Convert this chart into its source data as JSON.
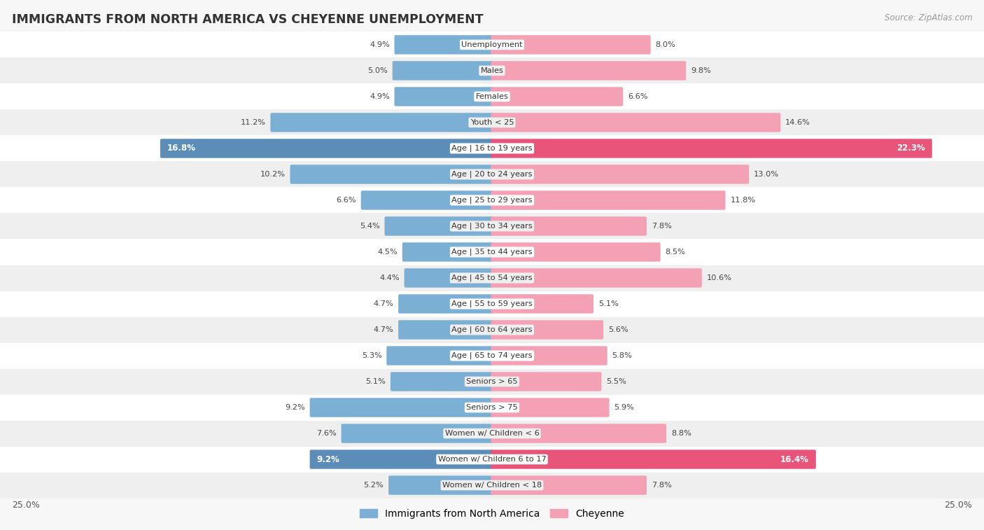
{
  "title": "IMMIGRANTS FROM NORTH AMERICA VS CHEYENNE UNEMPLOYMENT",
  "source": "Source: ZipAtlas.com",
  "categories": [
    "Unemployment",
    "Males",
    "Females",
    "Youth < 25",
    "Age | 16 to 19 years",
    "Age | 20 to 24 years",
    "Age | 25 to 29 years",
    "Age | 30 to 34 years",
    "Age | 35 to 44 years",
    "Age | 45 to 54 years",
    "Age | 55 to 59 years",
    "Age | 60 to 64 years",
    "Age | 65 to 74 years",
    "Seniors > 65",
    "Seniors > 75",
    "Women w/ Children < 6",
    "Women w/ Children 6 to 17",
    "Women w/ Children < 18"
  ],
  "left_values": [
    4.9,
    5.0,
    4.9,
    11.2,
    16.8,
    10.2,
    6.6,
    5.4,
    4.5,
    4.4,
    4.7,
    4.7,
    5.3,
    5.1,
    9.2,
    7.6,
    9.2,
    5.2
  ],
  "right_values": [
    8.0,
    9.8,
    6.6,
    14.6,
    22.3,
    13.0,
    11.8,
    7.8,
    8.5,
    10.6,
    5.1,
    5.6,
    5.8,
    5.5,
    5.9,
    8.8,
    16.4,
    7.8
  ],
  "left_color": "#7bafd4",
  "right_color": "#f4a0b5",
  "left_color_highlight": "#5b8db8",
  "right_color_highlight": "#e8547a",
  "highlight_rows": [
    4,
    16
  ],
  "max_val": 25.0,
  "left_label": "Immigrants from North America",
  "right_label": "Cheyenne",
  "bg_color": "#f7f7f7",
  "row_colors": [
    "#ffffff",
    "#efefef"
  ]
}
